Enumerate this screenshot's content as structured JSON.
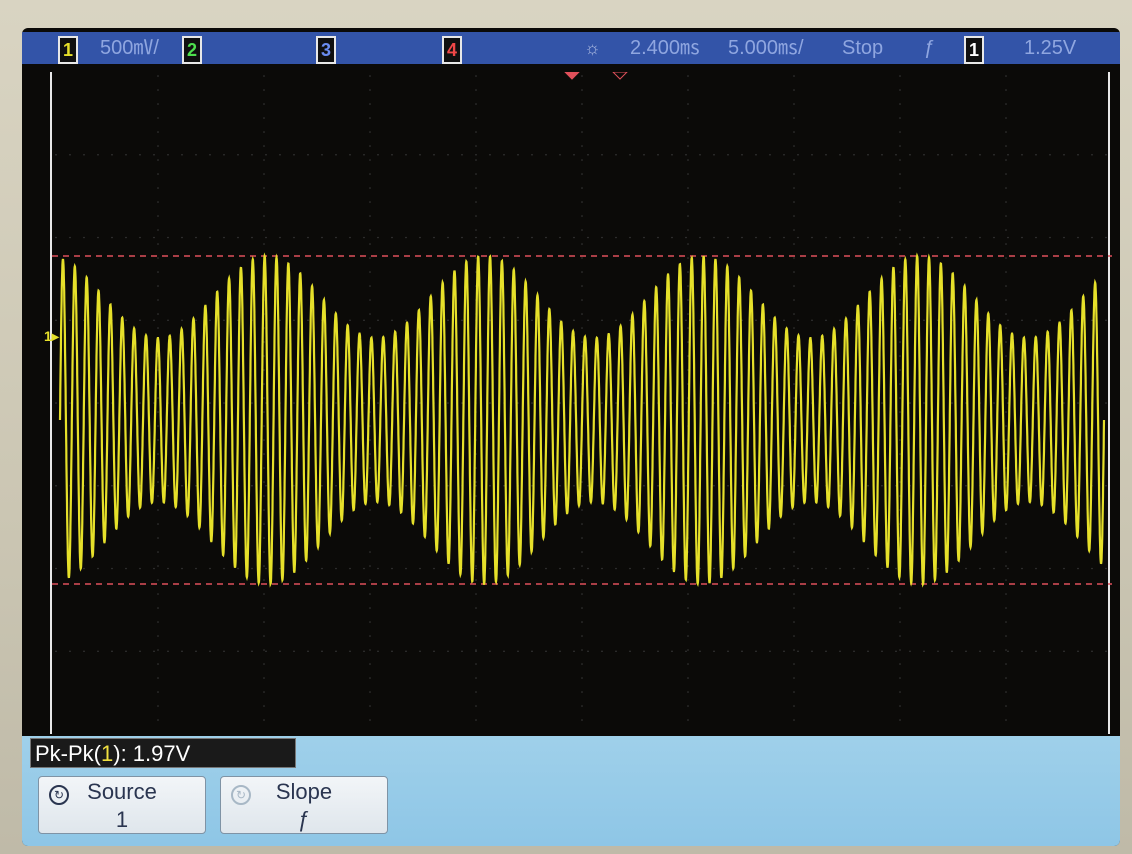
{
  "status_bar": {
    "ch1_label": "1",
    "ch1_scale": "500㎷/",
    "ch2_label": "2",
    "ch3_label": "3",
    "ch4_label": "4",
    "acquire_icon": "sun-icon",
    "time_offset": "2.400㎳",
    "time_scale": "5.000㎳/",
    "run_state": "Stop",
    "trigger_slope_glyph": "ƒ",
    "trigger_source": "1",
    "trigger_level": "1.25V"
  },
  "channel_marker": "1▸",
  "measurement": {
    "prefix": "Pk-Pk(",
    "channel": "1",
    "suffix": "): 1.97V"
  },
  "softkeys": [
    {
      "label": "Source",
      "value": "1",
      "icon": "knob-icon"
    },
    {
      "label": "Slope",
      "value": "ƒ",
      "icon": "knob-icon"
    }
  ],
  "colors": {
    "trace": "#e6e02a",
    "cursor": "#e0505a",
    "status_bar": "#3354a8",
    "softkey_area": "#9fd0ea"
  },
  "waveform": {
    "description_free": true,
    "carrier_cycles": 88,
    "envelope_cycles": 4.8,
    "mod_depth": 0.5
  }
}
